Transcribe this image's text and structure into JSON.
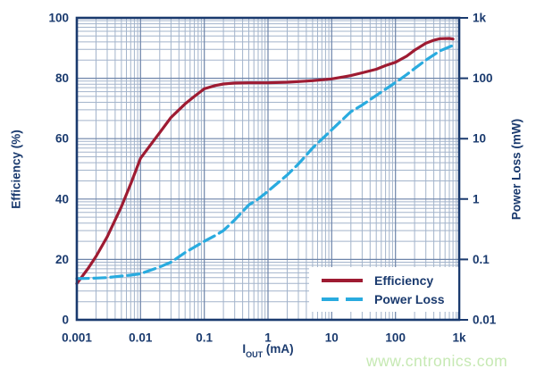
{
  "colors": {
    "text_navy": "#1a3a6e",
    "frame": "#1a3a6e",
    "grid_minor": "#a3b4cb",
    "grid_major": "#6d84a9",
    "efficiency_line": "#9e1b32",
    "power_loss_line": "#29abdf",
    "legend_bg": "#ffffff",
    "watermark_green": "#c6e9b3"
  },
  "axes": {
    "x": {
      "label_main": "I",
      "label_sub": "OUT",
      "label_unit": " (mA)",
      "tick_labels": [
        "0.001",
        "0.01",
        "0.1",
        "1",
        "10",
        "100",
        "1k"
      ],
      "tick_exponents": [
        -3,
        -2,
        -1,
        0,
        1,
        2,
        3
      ]
    },
    "y_left": {
      "label": "Efficiency (%)",
      "tick_labels": [
        "100",
        "80",
        "60",
        "40",
        "20",
        "0"
      ],
      "tick_values": [
        100,
        80,
        60,
        40,
        20,
        0
      ]
    },
    "y_right": {
      "label": "Power Loss (mW)",
      "tick_labels": [
        "1k",
        "100",
        "10",
        "1",
        "0.1",
        "0.01"
      ],
      "tick_values": [
        1000,
        100,
        10,
        1,
        0.1,
        0.01
      ]
    }
  },
  "legend": {
    "items": [
      {
        "label": "Efficiency",
        "color": "#9e1b32",
        "style": "solid"
      },
      {
        "label": "Power Loss",
        "color": "#29abdf",
        "style": "dashed"
      }
    ]
  },
  "watermark": "www.cntronics.com",
  "chart_data": {
    "type": "line",
    "title": "",
    "x_axis": {
      "label": "IOUT (mA)",
      "scale": "log",
      "range": [
        0.001,
        1000
      ]
    },
    "y_left_axis": {
      "label": "Efficiency (%)",
      "scale": "linear",
      "range": [
        0,
        100
      ]
    },
    "y_right_axis": {
      "label": "Power Loss (mW)",
      "scale": "log",
      "range": [
        0.01,
        1000
      ]
    },
    "grid": "log-log full minor grid",
    "legend_position": "bottom-right inside plot",
    "series": [
      {
        "name": "Efficiency",
        "axis": "left",
        "units": "%",
        "style": "solid",
        "color": "#9e1b32",
        "points": [
          [
            0.001,
            12
          ],
          [
            0.0015,
            17
          ],
          [
            0.002,
            21
          ],
          [
            0.003,
            27.5
          ],
          [
            0.005,
            37.5
          ],
          [
            0.007,
            45
          ],
          [
            0.01,
            53.5
          ],
          [
            0.015,
            58.5
          ],
          [
            0.02,
            62
          ],
          [
            0.03,
            67
          ],
          [
            0.05,
            71.5
          ],
          [
            0.07,
            74
          ],
          [
            0.1,
            76.5
          ],
          [
            0.15,
            77.6
          ],
          [
            0.2,
            78.1
          ],
          [
            0.3,
            78.4
          ],
          [
            0.5,
            78.5
          ],
          [
            0.7,
            78.5
          ],
          [
            1,
            78.5
          ],
          [
            2,
            78.7
          ],
          [
            3,
            78.9
          ],
          [
            5,
            79.2
          ],
          [
            10,
            79.8
          ],
          [
            15,
            80.4
          ],
          [
            20,
            80.9
          ],
          [
            30,
            81.8
          ],
          [
            50,
            83
          ],
          [
            70,
            84.2
          ],
          [
            100,
            85.3
          ],
          [
            150,
            87.3
          ],
          [
            200,
            89.3
          ],
          [
            300,
            91.6
          ],
          [
            400,
            92.6
          ],
          [
            500,
            93.1
          ],
          [
            700,
            93.2
          ],
          [
            800,
            93
          ]
        ]
      },
      {
        "name": "Power Loss",
        "axis": "right",
        "units": "mW",
        "style": "dashed",
        "color": "#29abdf",
        "points": [
          [
            0.001,
            0.048
          ],
          [
            0.002,
            0.049
          ],
          [
            0.003,
            0.05
          ],
          [
            0.005,
            0.053
          ],
          [
            0.007,
            0.055
          ],
          [
            0.01,
            0.058
          ],
          [
            0.02,
            0.075
          ],
          [
            0.03,
            0.09
          ],
          [
            0.05,
            0.13
          ],
          [
            0.07,
            0.16
          ],
          [
            0.1,
            0.2
          ],
          [
            0.15,
            0.25
          ],
          [
            0.2,
            0.3
          ],
          [
            0.3,
            0.45
          ],
          [
            0.5,
            0.8
          ],
          [
            0.7,
            1.0
          ],
          [
            1,
            1.35
          ],
          [
            2,
            2.5
          ],
          [
            3,
            3.8
          ],
          [
            5,
            7
          ],
          [
            10,
            14
          ],
          [
            20,
            28
          ],
          [
            30,
            36
          ],
          [
            50,
            52
          ],
          [
            100,
            85
          ],
          [
            150,
            115
          ],
          [
            200,
            145
          ],
          [
            300,
            200
          ],
          [
            500,
            285
          ],
          [
            800,
            350
          ]
        ]
      }
    ]
  }
}
